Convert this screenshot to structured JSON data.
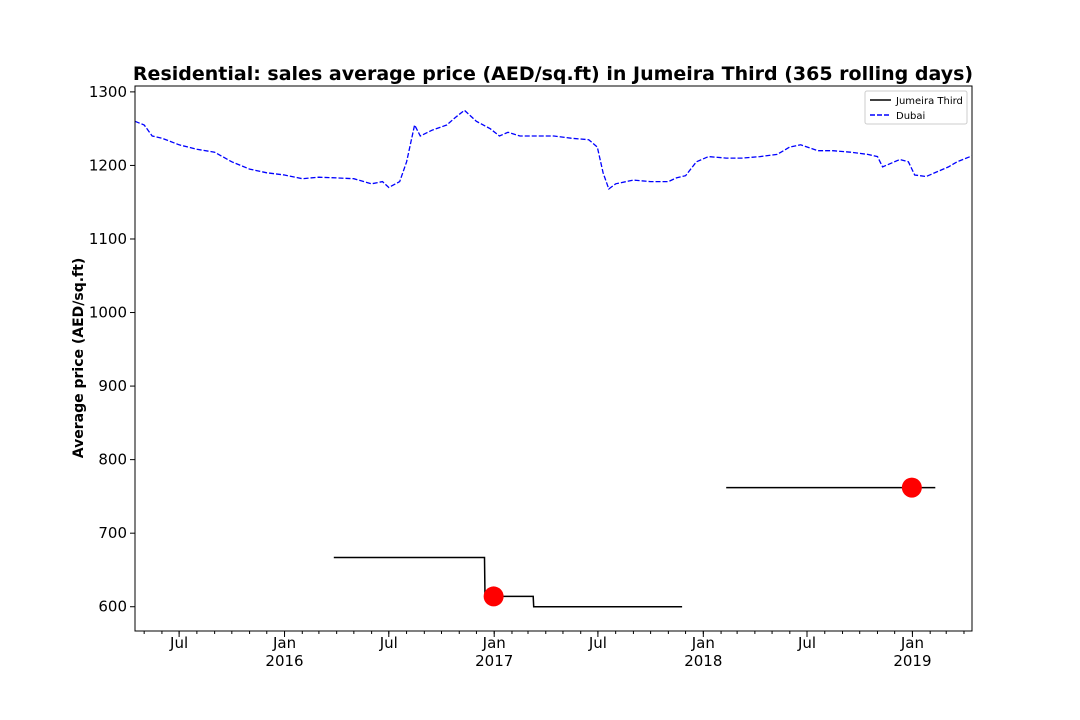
{
  "chart_data": {
    "type": "line",
    "title": "Residential: sales average price (AED/sq.ft) in Jumeira Third (365 rolling days)",
    "xlabel": "",
    "ylabel": "Average price (AED/sq.ft)",
    "xlim": [
      "2015-04-15",
      "2019-04-15"
    ],
    "ylim": [
      567,
      1308
    ],
    "yticks": [
      600,
      700,
      800,
      900,
      1000,
      1100,
      1200,
      1300
    ],
    "xticks": [
      {
        "date": "2015-07-01",
        "line1": "Jul",
        "line2": ""
      },
      {
        "date": "2016-01-01",
        "line1": "Jan",
        "line2": "2016"
      },
      {
        "date": "2016-07-01",
        "line1": "Jul",
        "line2": ""
      },
      {
        "date": "2017-01-01",
        "line1": "Jan",
        "line2": "2017"
      },
      {
        "date": "2017-07-01",
        "line1": "Jul",
        "line2": ""
      },
      {
        "date": "2018-01-01",
        "line1": "Jan",
        "line2": "2018"
      },
      {
        "date": "2018-07-01",
        "line1": "Jul",
        "line2": ""
      },
      {
        "date": "2019-01-01",
        "line1": "Jan",
        "line2": "2019"
      }
    ],
    "grid": false,
    "legend_position": "top-right",
    "series": [
      {
        "name": "Jumeira Third",
        "color": "#000000",
        "style": "solid",
        "step": true,
        "segments": [
          [
            [
              "2016-03-27",
              667
            ],
            [
              "2016-12-15",
              667
            ],
            [
              "2016-12-16",
              614
            ],
            [
              "2017-03-10",
              614
            ],
            [
              "2017-03-11",
              600
            ],
            [
              "2017-11-25",
              600
            ]
          ],
          [
            [
              "2018-02-10",
              762
            ],
            [
              "2019-02-10",
              762
            ]
          ]
        ]
      },
      {
        "name": "Dubai",
        "color": "#0000ff",
        "style": "dashed",
        "step": false,
        "segments": [
          [
            [
              "2015-04-15",
              1260
            ],
            [
              "2015-05-01",
              1255
            ],
            [
              "2015-05-15",
              1240
            ],
            [
              "2015-06-01",
              1237
            ],
            [
              "2015-07-01",
              1228
            ],
            [
              "2015-08-01",
              1222
            ],
            [
              "2015-09-01",
              1218
            ],
            [
              "2015-10-01",
              1205
            ],
            [
              "2015-11-01",
              1195
            ],
            [
              "2015-12-01",
              1190
            ],
            [
              "2016-01-01",
              1187
            ],
            [
              "2016-02-01",
              1182
            ],
            [
              "2016-03-01",
              1184
            ],
            [
              "2016-04-01",
              1183
            ],
            [
              "2016-05-01",
              1182
            ],
            [
              "2016-06-01",
              1175
            ],
            [
              "2016-06-20",
              1178
            ],
            [
              "2016-07-01",
              1170
            ],
            [
              "2016-07-20",
              1178
            ],
            [
              "2016-08-01",
              1205
            ],
            [
              "2016-08-15",
              1255
            ],
            [
              "2016-08-25",
              1240
            ],
            [
              "2016-09-15",
              1248
            ],
            [
              "2016-10-10",
              1255
            ],
            [
              "2016-10-25",
              1265
            ],
            [
              "2016-11-10",
              1275
            ],
            [
              "2016-12-01",
              1260
            ],
            [
              "2016-12-25",
              1250
            ],
            [
              "2017-01-10",
              1240
            ],
            [
              "2017-01-25",
              1245
            ],
            [
              "2017-02-15",
              1240
            ],
            [
              "2017-03-15",
              1240
            ],
            [
              "2017-04-15",
              1240
            ],
            [
              "2017-05-15",
              1237
            ],
            [
              "2017-06-15",
              1235
            ],
            [
              "2017-06-30",
              1225
            ],
            [
              "2017-07-10",
              1190
            ],
            [
              "2017-07-20",
              1168
            ],
            [
              "2017-08-01",
              1175
            ],
            [
              "2017-09-01",
              1180
            ],
            [
              "2017-10-01",
              1178
            ],
            [
              "2017-11-01",
              1178
            ],
            [
              "2017-11-15",
              1183
            ],
            [
              "2017-12-01",
              1186
            ],
            [
              "2017-12-20",
              1205
            ],
            [
              "2018-01-10",
              1212
            ],
            [
              "2018-02-10",
              1210
            ],
            [
              "2018-03-10",
              1210
            ],
            [
              "2018-04-10",
              1212
            ],
            [
              "2018-05-10",
              1215
            ],
            [
              "2018-06-01",
              1225
            ],
            [
              "2018-06-20",
              1228
            ],
            [
              "2018-07-05",
              1224
            ],
            [
              "2018-07-20",
              1220
            ],
            [
              "2018-08-15",
              1220
            ],
            [
              "2018-09-15",
              1218
            ],
            [
              "2018-10-15",
              1215
            ],
            [
              "2018-11-01",
              1212
            ],
            [
              "2018-11-10",
              1198
            ],
            [
              "2018-11-25",
              1203
            ],
            [
              "2018-12-10",
              1208
            ],
            [
              "2018-12-25",
              1205
            ],
            [
              "2019-01-05",
              1187
            ],
            [
              "2019-01-25",
              1185
            ],
            [
              "2019-02-15",
              1192
            ],
            [
              "2019-03-05",
              1198
            ],
            [
              "2019-03-20",
              1205
            ],
            [
              "2019-04-15",
              1213
            ]
          ]
        ]
      }
    ],
    "markers": [
      {
        "date": "2016-12-31",
        "value": 614,
        "color": "#ff0000"
      },
      {
        "date": "2018-12-31",
        "value": 762,
        "color": "#ff0000"
      }
    ]
  }
}
